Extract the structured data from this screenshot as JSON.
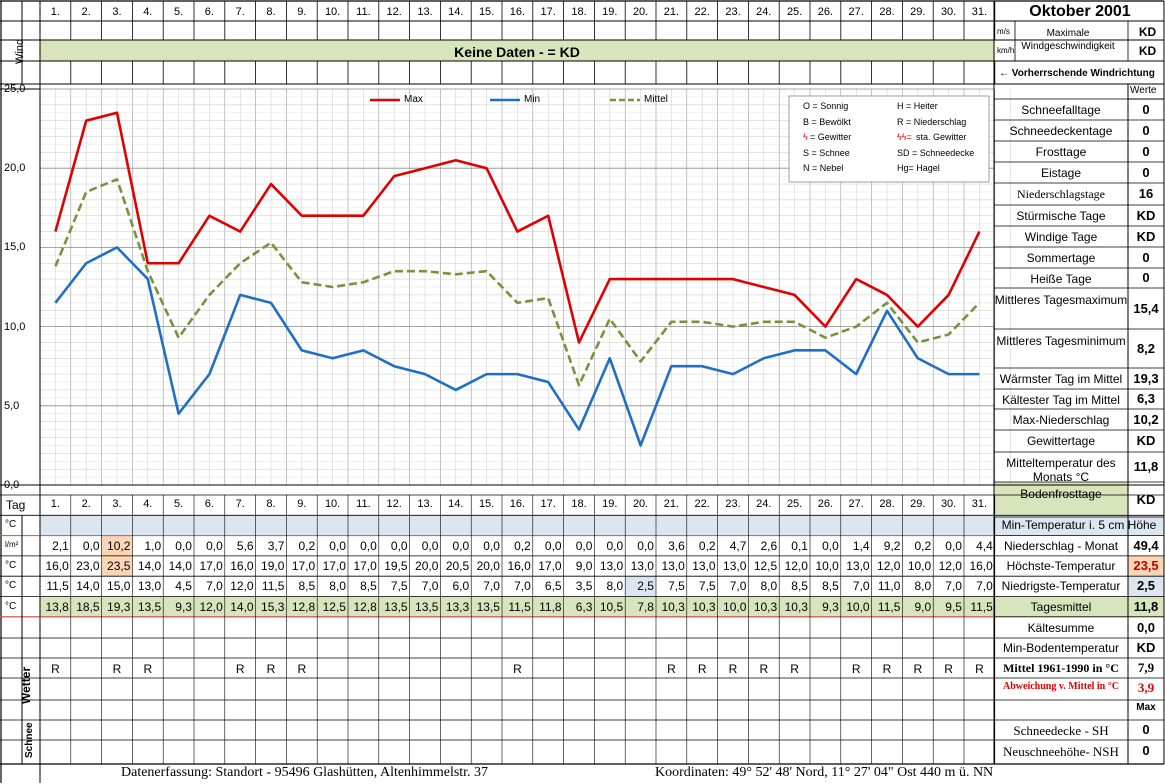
{
  "days": [
    "1.",
    "2.",
    "3.",
    "4.",
    "5.",
    "6.",
    "7.",
    "8.",
    "9.",
    "10.",
    "11.",
    "12.",
    "13.",
    "14.",
    "15.",
    "16.",
    "17.",
    "18.",
    "19.",
    "20.",
    "21.",
    "22.",
    "23.",
    "24.",
    "25.",
    "26.",
    "27.",
    "28.",
    "29.",
    "30.",
    "31."
  ],
  "header": {
    "title": "Oktober 2001",
    "wind_label": "Wind"
  },
  "wind": {
    "unit_ms": "m/s",
    "unit_kmh": "km/h",
    "max_label": "Maximale Windgeschwindigkeit",
    "max_ms": "KD",
    "max_kmh": "KD",
    "banner": "Keine Daten -  = KD",
    "direction_label": "← Vorherrschende Windrichtung"
  },
  "legend": {
    "max": "Max",
    "min": "Min",
    "mittel": "Mittel"
  },
  "key": [
    [
      "O = Sonnig",
      "H = Heiter"
    ],
    [
      "B = Bewölkt",
      "R = Niederschlag"
    ],
    [
      "= Gewitter",
      "sta. Gewitter"
    ],
    [
      "S = Schnee",
      "SD = Schneedecke"
    ],
    [
      "N = Nebel",
      "Hg= Hagel"
    ]
  ],
  "key_symbols": [
    "ϟ",
    "ϟϟ="
  ],
  "stats_header": "Werte",
  "stats": [
    {
      "label": "Schneefalltage",
      "value": "0"
    },
    {
      "label": "Schneedeckentage",
      "value": "0"
    },
    {
      "label": "Frosttage",
      "value": "0"
    },
    {
      "label": "Eistage",
      "value": "0"
    },
    {
      "label": "Niederschlagstage",
      "value": "16"
    },
    {
      "label": "Stürmische Tage",
      "value": "KD"
    },
    {
      "label": "Windige Tage",
      "value": "KD"
    },
    {
      "label": "Sommertage",
      "value": "0"
    },
    {
      "label": "Heiße Tage",
      "value": "0"
    },
    {
      "label": "Mittleres Tagesmaximum",
      "value": "15,4"
    },
    {
      "label": "Mittleres Tagesminimum",
      "value": "8,2"
    },
    {
      "label": "Wärmster Tag im Mittel",
      "value": "19,3"
    },
    {
      "label": "Kältester Tag im Mittel",
      "value": "6,3"
    },
    {
      "label": "Max-Niederschlag",
      "value": "10,2"
    },
    {
      "label": "Gewittertage",
      "value": "KD"
    },
    {
      "label": "Mitteltemperatur des Monats °C",
      "value": "11,8"
    },
    {
      "label": "Bodenfrosttage",
      "value": "KD"
    }
  ],
  "chart_data": {
    "type": "line",
    "categories": [
      "1.",
      "2.",
      "3.",
      "4.",
      "5.",
      "6.",
      "7.",
      "8.",
      "9.",
      "10.",
      "11.",
      "12.",
      "13.",
      "14.",
      "15.",
      "16.",
      "17.",
      "18.",
      "19.",
      "20.",
      "21.",
      "22.",
      "23.",
      "24.",
      "25.",
      "26.",
      "27.",
      "28.",
      "29.",
      "30.",
      "31."
    ],
    "ylim": [
      0,
      25
    ],
    "y_ticks": [
      "0,0",
      "5,0",
      "10,0",
      "15,0",
      "20,0",
      "25,0"
    ],
    "series": [
      {
        "name": "Max",
        "color": "#e00000",
        "values": [
          16.0,
          23.0,
          23.5,
          14.0,
          14.0,
          17.0,
          16.0,
          19.0,
          17.0,
          17.0,
          17.0,
          19.5,
          20.0,
          20.5,
          20.0,
          16.0,
          17.0,
          9.0,
          13.0,
          13.0,
          13.0,
          13.0,
          13.0,
          12.5,
          12.0,
          10.0,
          13.0,
          12.0,
          10.0,
          12.0,
          16.0
        ]
      },
      {
        "name": "Min",
        "color": "#1f6fc6",
        "values": [
          11.5,
          14.0,
          15.0,
          13.0,
          4.5,
          7.0,
          12.0,
          11.5,
          8.5,
          8.0,
          8.5,
          7.5,
          7.0,
          6.0,
          7.0,
          7.0,
          6.5,
          3.5,
          8.0,
          2.5,
          7.5,
          7.5,
          7.0,
          8.0,
          8.5,
          8.5,
          7.0,
          11.0,
          8.0,
          7.0,
          7.0
        ]
      },
      {
        "name": "Mittel",
        "color": "#77933c",
        "values": [
          13.8,
          18.5,
          19.3,
          13.5,
          9.3,
          12.0,
          14.0,
          15.3,
          12.8,
          12.5,
          12.8,
          13.5,
          13.5,
          13.3,
          13.5,
          11.5,
          11.8,
          6.3,
          10.5,
          7.8,
          10.3,
          10.3,
          10.0,
          10.3,
          10.3,
          9.3,
          10.0,
          11.5,
          9.0,
          9.5,
          11.5
        ]
      }
    ],
    "grid": true,
    "legend_position": "top"
  },
  "table": {
    "tag_label": "Tag",
    "rows": [
      {
        "unit": "°C",
        "values": [
          "",
          "",
          "",
          "",
          "",
          "",
          "",
          "",
          "",
          "",
          "",
          "",
          "",
          "",
          "",
          "",
          "",
          "",
          "",
          "",
          "",
          "",
          "",
          "",
          "",
          "",
          "",
          "",
          "",
          "",
          ""
        ],
        "label": "Min-Temperatur i. 5 cm Höhe",
        "value": ""
      },
      {
        "unit": "l/m²",
        "values": [
          "2,1",
          "0,0",
          "10,2",
          "1,0",
          "0,0",
          "0,0",
          "5,6",
          "3,7",
          "0,2",
          "0,0",
          "0,0",
          "0,0",
          "0,0",
          "0,0",
          "0,0",
          "0,2",
          "0,0",
          "0,0",
          "0,0",
          "0,0",
          "3,6",
          "0,2",
          "4,7",
          "2,6",
          "0,1",
          "0,0",
          "1,4",
          "9,2",
          "0,2",
          "0,0",
          "4,4"
        ],
        "label": "Niederschlag - Monat",
        "value": "49,4"
      },
      {
        "unit": "°C",
        "values": [
          "16,0",
          "23,0",
          "23,5",
          "14,0",
          "14,0",
          "17,0",
          "16,0",
          "19,0",
          "17,0",
          "17,0",
          "17,0",
          "19,5",
          "20,0",
          "20,5",
          "20,0",
          "16,0",
          "17,0",
          "9,0",
          "13,0",
          "13,0",
          "13,0",
          "13,0",
          "13,0",
          "12,5",
          "12,0",
          "10,0",
          "13,0",
          "12,0",
          "10,0",
          "12,0",
          "16,0"
        ],
        "label": "Höchste-Temperatur",
        "value": "23,5"
      },
      {
        "unit": "°C",
        "values": [
          "11,5",
          "14,0",
          "15,0",
          "13,0",
          "4,5",
          "7,0",
          "12,0",
          "11,5",
          "8,5",
          "8,0",
          "8,5",
          "7,5",
          "7,0",
          "6,0",
          "7,0",
          "7,0",
          "6,5",
          "3,5",
          "8,0",
          "2,5",
          "7,5",
          "7,5",
          "7,0",
          "8,0",
          "8,5",
          "8,5",
          "7,0",
          "11,0",
          "8,0",
          "7,0",
          "7,0"
        ],
        "label": "Niedrigste-Temperatur",
        "value": "2,5"
      },
      {
        "unit": "°C",
        "values": [
          "13,8",
          "18,5",
          "19,3",
          "13,5",
          "9,3",
          "12,0",
          "14,0",
          "15,3",
          "12,8",
          "12,5",
          "12,8",
          "13,5",
          "13,5",
          "13,3",
          "13,5",
          "11,5",
          "11,8",
          "6,3",
          "10,5",
          "7,8",
          "10,3",
          "10,3",
          "10,0",
          "10,3",
          "10,3",
          "9,3",
          "10,0",
          "11,5",
          "9,0",
          "9,5",
          "11,5"
        ],
        "label": "Tagesmittel",
        "value": "11,8"
      }
    ],
    "extra": [
      {
        "label": "Kältesumme",
        "value": "0,0"
      },
      {
        "label": "Min-Bodentemperatur",
        "value": "KD"
      },
      {
        "label": "Mittel 1961-1990 in °C",
        "value": "7,9"
      },
      {
        "label": "Abweichung v. Mittel in °C",
        "value": "3,9"
      },
      {
        "label": "",
        "value": "Max"
      }
    ],
    "wetter_label": "Wetter",
    "wetter": [
      "R",
      "",
      "R",
      "R",
      "",
      "",
      "R",
      "R",
      "R",
      "",
      "",
      "",
      "",
      "",
      "",
      "R",
      "",
      "",
      "",
      "",
      "R",
      "R",
      "R",
      "R",
      "R",
      "",
      "R",
      "R",
      "R",
      "R",
      "R"
    ],
    "schnee_label": "Schnee",
    "schnee_rows": [
      {
        "label": "Schneedecke -   SH",
        "value": "0"
      },
      {
        "label": "Neuschneehöhe- NSH",
        "value": "0"
      }
    ]
  },
  "footer": {
    "left": "Datenerfassung:  Standort -   95496  Glashütten, Altenhimmelstr. 37",
    "right": "Koordinaten:  49° 52' 48' Nord,  11° 27' 04\" Ost   440 m ü. NN"
  }
}
